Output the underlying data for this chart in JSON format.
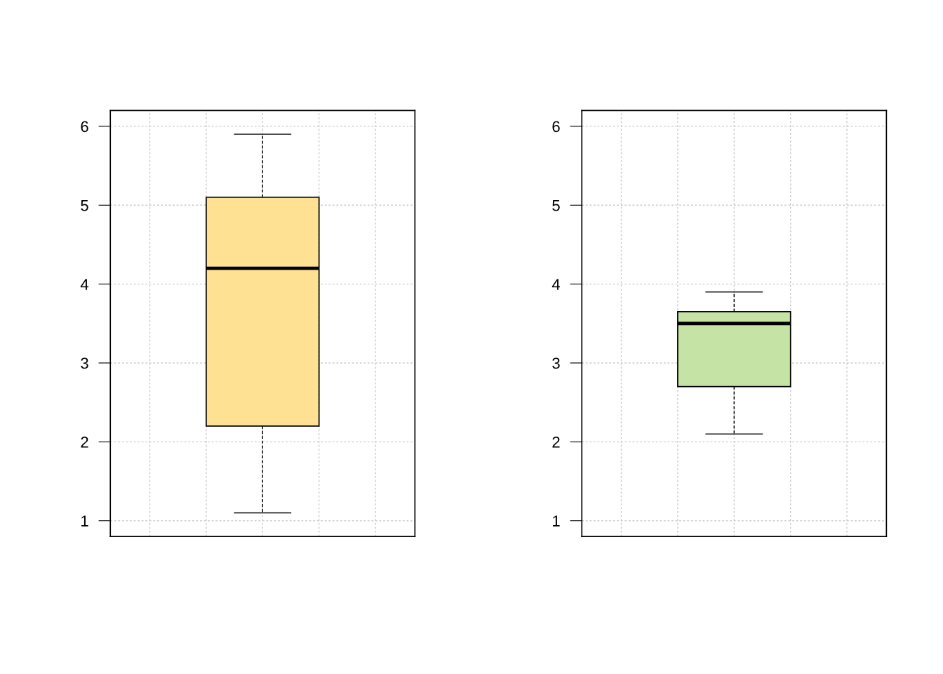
{
  "chart_data": [
    {
      "type": "box",
      "categories": [
        null
      ],
      "boxes": [
        {
          "low": 1.1,
          "q1": 2.2,
          "median": 4.2,
          "q3": 5.1,
          "high": 5.9
        }
      ],
      "colors": [
        "#fee192"
      ],
      "ylim": [
        0.8,
        6.2
      ],
      "yticks": [
        1,
        2,
        3,
        4,
        5,
        6
      ],
      "grid": true,
      "tick_labels": "y"
    },
    {
      "type": "box",
      "categories": [
        null
      ],
      "boxes": [
        {
          "low": 2.1,
          "q1": 2.7,
          "median": 3.5,
          "q3": 3.65,
          "high": 3.9
        }
      ],
      "colors": [
        "#c5e3a5"
      ],
      "ylim": [
        0.8,
        6.2
      ],
      "yticks": [
        1,
        2,
        3,
        4,
        5,
        6
      ],
      "grid": true,
      "tick_labels": "y"
    }
  ]
}
